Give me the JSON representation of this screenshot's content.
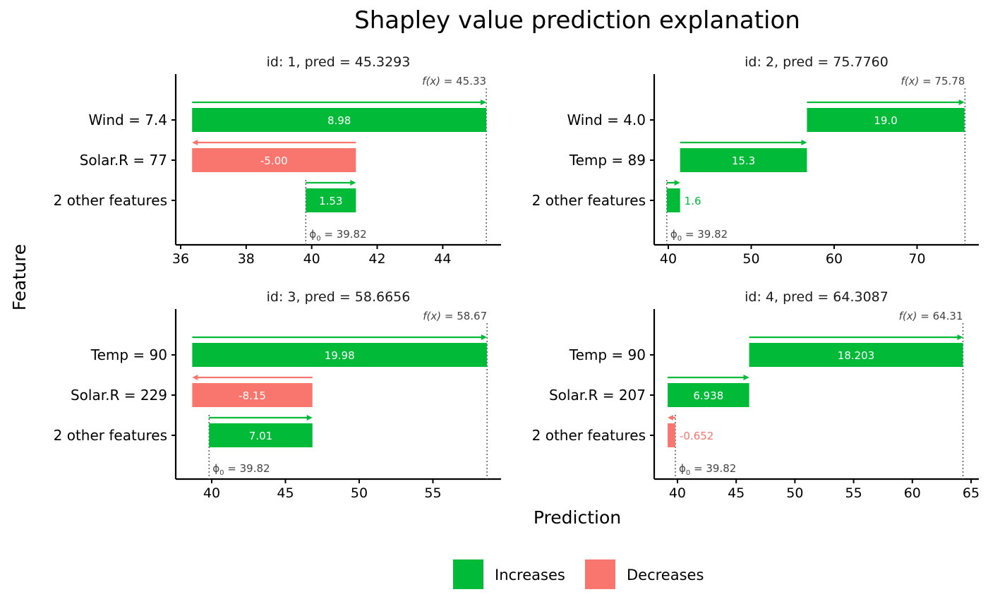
{
  "chart_data": {
    "type": "bar",
    "title": "Shapley value prediction explanation",
    "xlabel": "Prediction",
    "ylabel": "Feature",
    "legend": {
      "placement": "bottom",
      "entries": [
        {
          "label": "Increases",
          "color": "#00BA38"
        },
        {
          "label": "Decreases",
          "color": "#F8766D"
        }
      ]
    },
    "colors": {
      "increase": "#00BA38",
      "decrease": "#F8766D"
    },
    "panels": [
      {
        "title": "id: 1, pred =  45.3293",
        "phi0": 39.82,
        "phi0_label": "39.82",
        "fx": 45.33,
        "fx_label": "45.33",
        "xlim": [
          35.85,
          45.78
        ],
        "ticks": [
          36,
          38,
          40,
          42,
          44
        ],
        "features": [
          {
            "label": "Wind = 7.4",
            "value": 8.98,
            "value_label": "8.98"
          },
          {
            "label": "Solar.R = 77",
            "value": -5.0,
            "value_label": "-5.00"
          },
          {
            "label": "2 other features",
            "value": 1.53,
            "value_label": "1.53"
          }
        ]
      },
      {
        "title": "id: 2, pred =  75.7760",
        "phi0": 39.82,
        "phi0_label": "39.82",
        "fx": 75.78,
        "fx_label": "75.78",
        "xlim": [
          38.3,
          77.45
        ],
        "ticks": [
          40,
          50,
          60,
          70
        ],
        "features": [
          {
            "label": "Wind = 4.0",
            "value": 19.0,
            "value_label": "19.0"
          },
          {
            "label": "Temp = 89",
            "value": 15.3,
            "value_label": "15.3"
          },
          {
            "label": "2 other features",
            "value": 1.6,
            "value_label": "1.6"
          }
        ]
      },
      {
        "title": "id: 3, pred =  58.6656",
        "phi0": 39.82,
        "phi0_label": "39.82",
        "fx": 58.67,
        "fx_label": "58.67",
        "xlim": [
          37.56,
          59.62
        ],
        "ticks": [
          40,
          45,
          50,
          55
        ],
        "features": [
          {
            "label": "Temp = 90",
            "value": 19.98,
            "value_label": "19.98"
          },
          {
            "label": "Solar.R = 229",
            "value": -8.15,
            "value_label": "-8.15"
          },
          {
            "label": "2 other features",
            "value": 7.01,
            "value_label": "7.01"
          }
        ]
      },
      {
        "title": "id: 4, pred =  64.3087",
        "phi0": 39.82,
        "phi0_label": "39.82",
        "fx": 64.31,
        "fx_label": "64.31",
        "xlim": [
          38.02,
          65.66
        ],
        "ticks": [
          40,
          45,
          50,
          55,
          60,
          65
        ],
        "features": [
          {
            "label": "Temp = 90",
            "value": 18.203,
            "value_label": "18.203"
          },
          {
            "label": "Solar.R = 207",
            "value": 6.938,
            "value_label": "6.938"
          },
          {
            "label": "2 other features",
            "value": -0.652,
            "value_label": "-0.652"
          }
        ]
      }
    ]
  }
}
